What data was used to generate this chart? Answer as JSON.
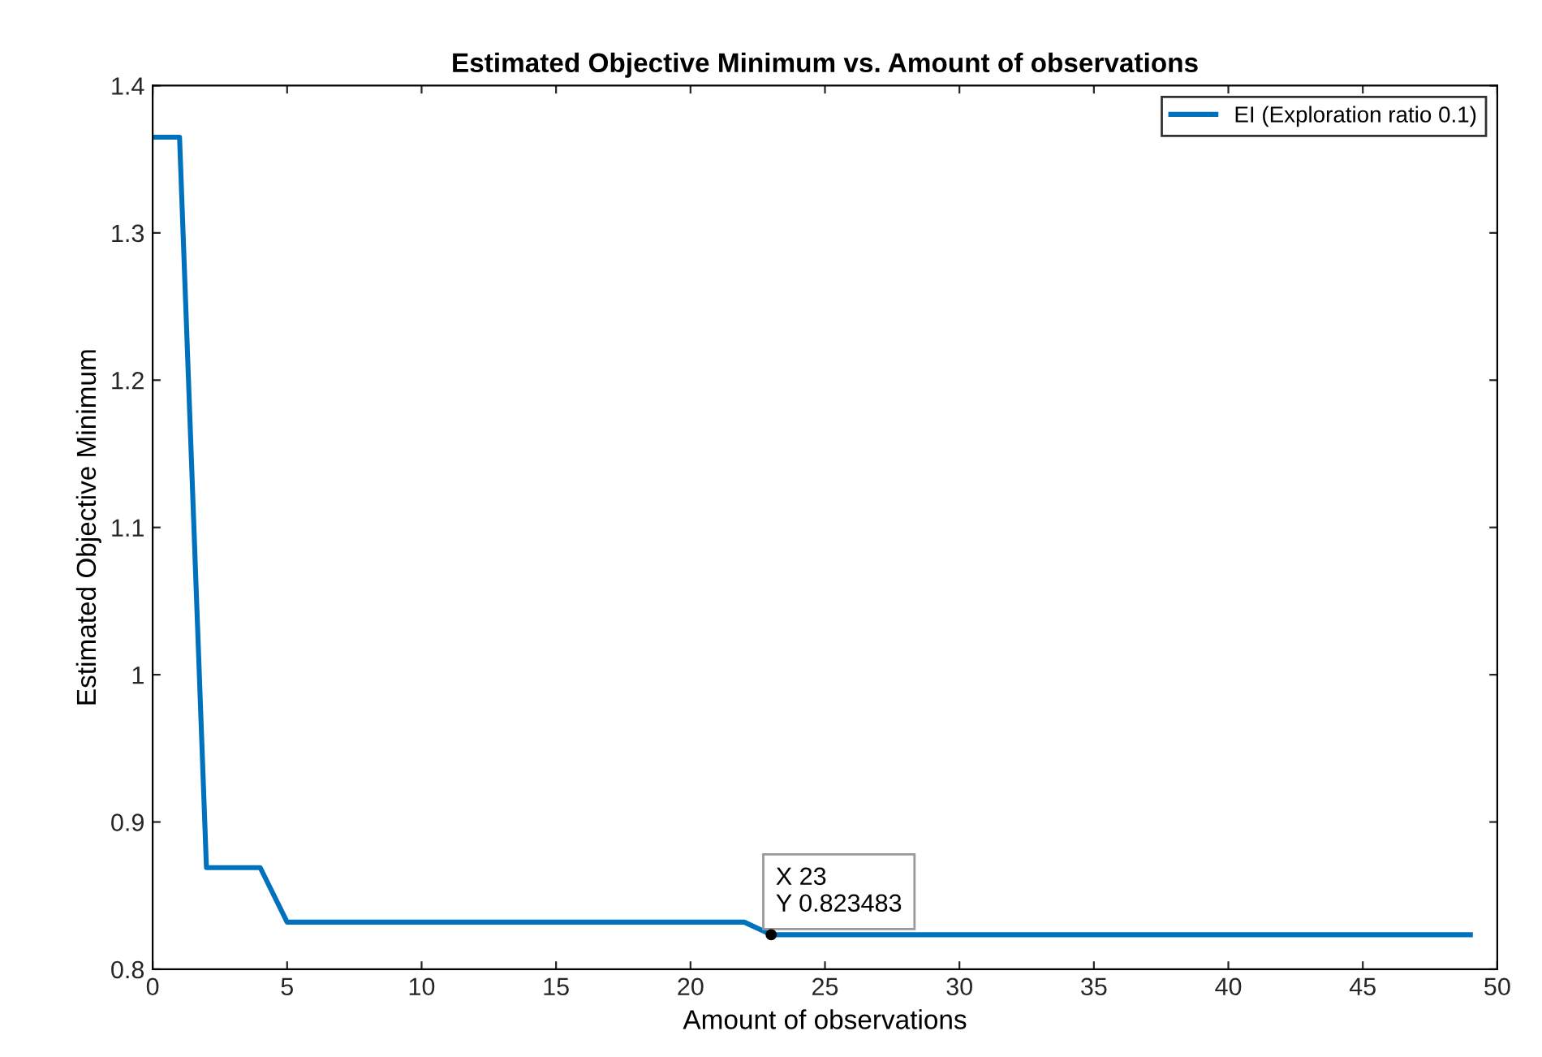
{
  "chart_data": {
    "type": "line",
    "title": "Estimated Objective Minimum vs. Amount of observations",
    "xlabel": "Amount of observations",
    "ylabel": "Estimated Objective Minimum",
    "series": [
      {
        "name": "EI (Exploration ratio 0.1)",
        "color": "#0072bd",
        "x": [
          0,
          1,
          2,
          4,
          5,
          22,
          23,
          49
        ],
        "values": [
          1.365,
          1.365,
          0.869,
          0.869,
          0.832,
          0.832,
          0.823483,
          0.823483
        ]
      }
    ],
    "annotations": [
      {
        "text": "X 23\nY 0.823483",
        "x": 23,
        "y": 0.823483
      }
    ],
    "xlim": [
      0,
      50
    ],
    "xticks": [
      0,
      5,
      10,
      15,
      20,
      25,
      30,
      35,
      40,
      45,
      50
    ],
    "ylim": [
      0.8,
      1.4
    ],
    "yticks": [
      0.8,
      0.9,
      1,
      1.1,
      1.2,
      1.3,
      1.4
    ],
    "grid": false,
    "legend": "top right",
    "marker": "none",
    "line_style": "solid"
  }
}
